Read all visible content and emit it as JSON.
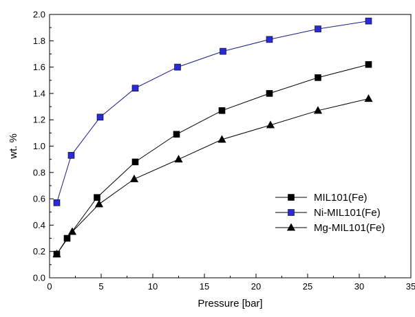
{
  "chart_data": {
    "type": "line",
    "title": "",
    "xlabel": "Pressure [bar]",
    "ylabel": "wt. %",
    "xlim": [
      0,
      35
    ],
    "ylim": [
      0.0,
      2.0
    ],
    "xticks": [
      "0",
      "5",
      "10",
      "15",
      "20",
      "25",
      "30",
      "35"
    ],
    "yticks": [
      "0.0",
      "0.2",
      "0.4",
      "0.6",
      "0.8",
      "1.0",
      "1.2",
      "1.4",
      "1.6",
      "1.8",
      "2.0"
    ],
    "grid": false,
    "legend_position": "bottom-right",
    "series": [
      {
        "name": "MIL101(Fe)",
        "color": "#000000",
        "marker": "square",
        "x": [
          0.7,
          1.7,
          4.6,
          8.3,
          12.3,
          16.7,
          21.3,
          26.0,
          30.9
        ],
        "y": [
          0.18,
          0.3,
          0.61,
          0.88,
          1.09,
          1.27,
          1.4,
          1.52,
          1.62
        ]
      },
      {
        "name": "Ni-MIL101(Fe)",
        "color": "#2b2bd6",
        "marker": "square",
        "x": [
          0.7,
          2.1,
          4.9,
          8.3,
          12.4,
          16.8,
          21.3,
          26.0,
          30.9
        ],
        "y": [
          0.57,
          0.93,
          1.22,
          1.44,
          1.6,
          1.72,
          1.81,
          1.89,
          1.95
        ]
      },
      {
        "name": "Mg-MIL101(Fe)",
        "color": "#000000",
        "marker": "triangle",
        "x": [
          0.7,
          2.2,
          4.8,
          8.2,
          12.5,
          16.7,
          21.4,
          26.0,
          30.9
        ],
        "y": [
          0.18,
          0.35,
          0.56,
          0.75,
          0.9,
          1.05,
          1.16,
          1.27,
          1.36
        ]
      }
    ]
  }
}
